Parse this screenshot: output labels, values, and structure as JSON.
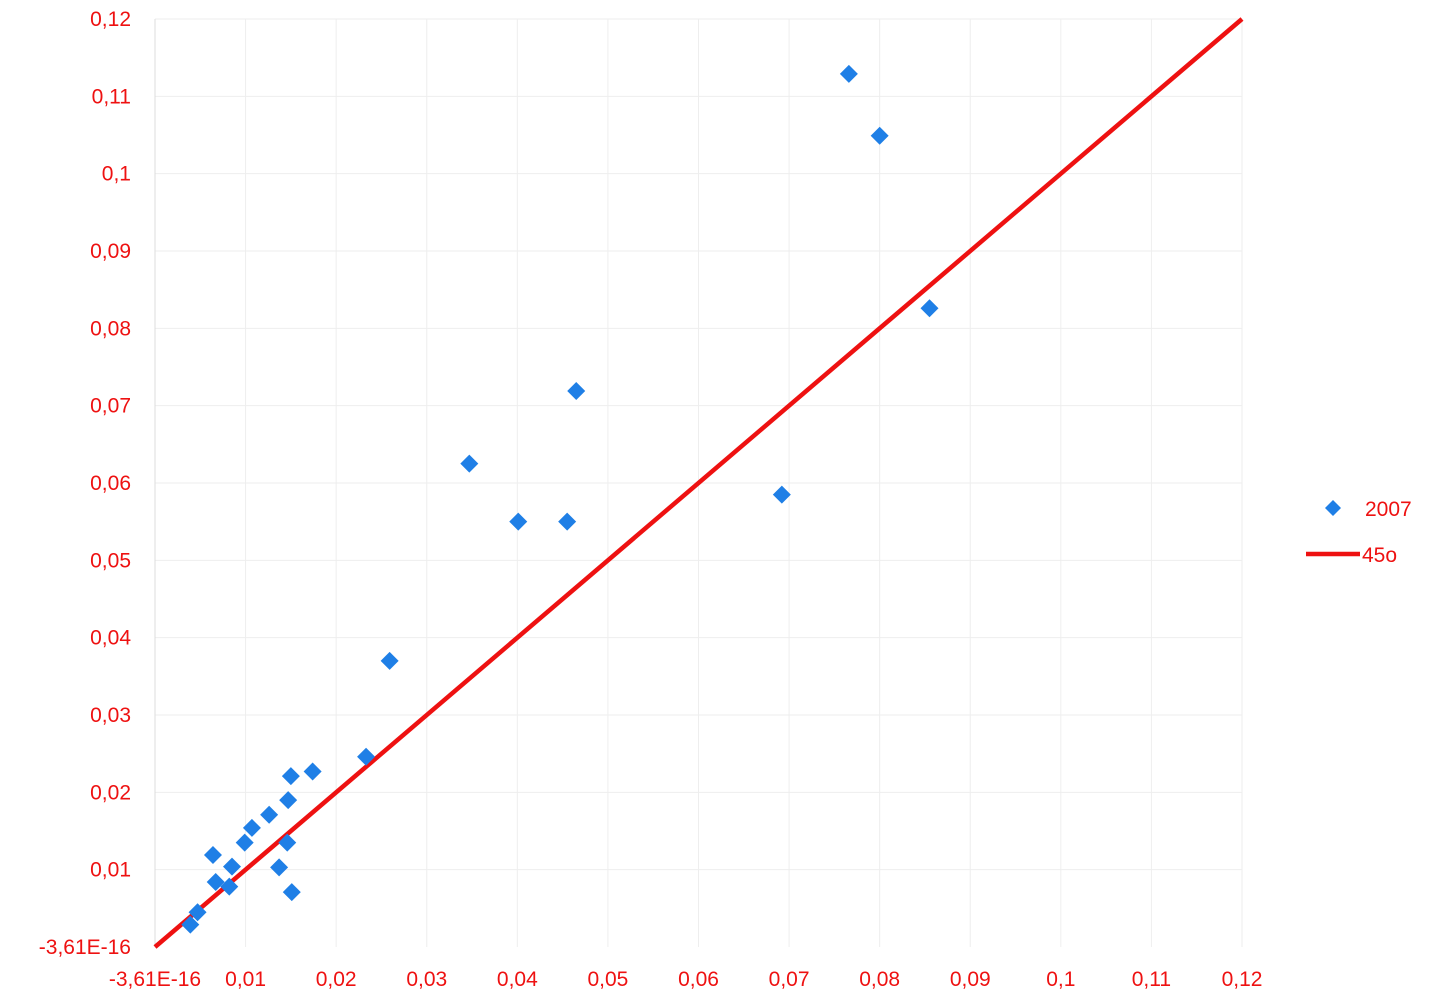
{
  "chart_data": {
    "type": "scatter",
    "title": "",
    "xlabel": "",
    "ylabel": "",
    "xlim": [
      0,
      0.12
    ],
    "ylim": [
      0,
      0.12
    ],
    "grid": true,
    "legend_position": "right",
    "x_ticks": [
      "-3,61E-16",
      "0,01",
      "0,02",
      "0,03",
      "0,04",
      "0,05",
      "0,06",
      "0,07",
      "0,08",
      "0,09",
      "0,1",
      "0,11",
      "0,12"
    ],
    "y_ticks": [
      "-3,61E-16",
      "0,01",
      "0,02",
      "0,03",
      "0,04",
      "0,05",
      "0,06",
      "0,07",
      "0,08",
      "0,09",
      "0,1",
      "0,11",
      "0,12"
    ],
    "series": [
      {
        "name": "2007",
        "kind": "scatter",
        "marker": "diamond",
        "color": "#1f7fe6",
        "points": [
          [
            0.0039,
            0.0029
          ],
          [
            0.0047,
            0.0045
          ],
          [
            0.0064,
            0.0119
          ],
          [
            0.0067,
            0.0084
          ],
          [
            0.0082,
            0.0078
          ],
          [
            0.0085,
            0.0104
          ],
          [
            0.0099,
            0.0135
          ],
          [
            0.0107,
            0.0154
          ],
          [
            0.0126,
            0.0171
          ],
          [
            0.0137,
            0.0103
          ],
          [
            0.0146,
            0.0135
          ],
          [
            0.0147,
            0.019
          ],
          [
            0.015,
            0.0221
          ],
          [
            0.0151,
            0.0071
          ],
          [
            0.0174,
            0.0227
          ],
          [
            0.0233,
            0.0246
          ],
          [
            0.0259,
            0.037
          ],
          [
            0.0347,
            0.0625
          ],
          [
            0.0401,
            0.055
          ],
          [
            0.0455,
            0.055
          ],
          [
            0.0465,
            0.0719
          ],
          [
            0.0692,
            0.0585
          ],
          [
            0.0766,
            0.1129
          ],
          [
            0.08,
            0.1049
          ],
          [
            0.0855,
            0.0826
          ]
        ]
      },
      {
        "name": "45o",
        "kind": "line",
        "color": "#ee1111",
        "points": [
          [
            0,
            0
          ],
          [
            0.12,
            0.12
          ]
        ]
      }
    ]
  },
  "colors": {
    "axis_text": "#ee1111",
    "gridline": "#eeeeee",
    "scatter": "#1f7fe6",
    "line": "#ee1111"
  }
}
